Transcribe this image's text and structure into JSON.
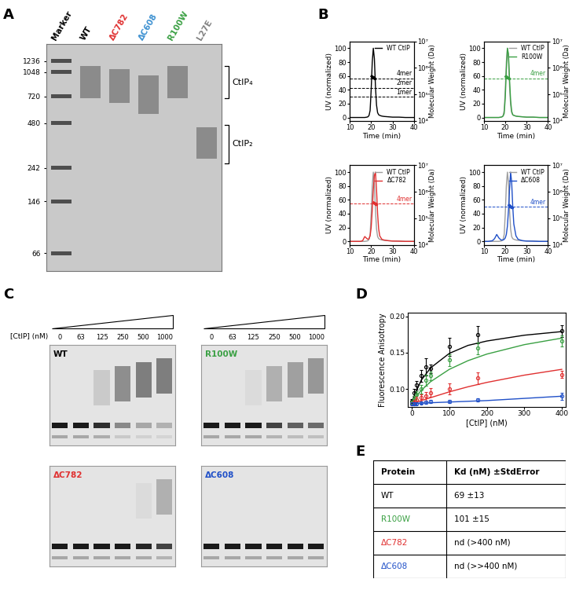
{
  "panel_labels": [
    "A",
    "B",
    "C",
    "D",
    "E"
  ],
  "native_gel": {
    "lanes": [
      {
        "label": "Marker",
        "color": "#000000"
      },
      {
        "label": "WT",
        "color": "#000000",
        "band_kda": [
          700,
          1150
        ]
      },
      {
        "label": "ΔC782",
        "color": "#e03030",
        "band_kda": [
          650,
          1100
        ]
      },
      {
        "label": "ΔC608",
        "color": "#3a8fd0",
        "band_kda": [
          550,
          1000
        ]
      },
      {
        "label": "R100W",
        "color": "#3aa043",
        "band_kda": [
          700,
          1150
        ]
      },
      {
        "label": "L27E",
        "color": "#808080",
        "band_kda": [
          280,
          450
        ]
      }
    ],
    "marker_kda": [
      1236,
      1048,
      720,
      480,
      242,
      146,
      66
    ],
    "ylim": [
      50,
      1600
    ],
    "log": "y",
    "brackets": [
      {
        "label": "CtIP₄",
        "from": 700,
        "to": 1150
      },
      {
        "label": "CtIP₂",
        "from": 260,
        "to": 470
      }
    ]
  },
  "chart_data": [
    {
      "type": "line",
      "x_label": "Time (min)",
      "y_label": "UV (normalized)",
      "y2_label": "Molecular Weight (Da)",
      "xlim": [
        10,
        40
      ],
      "xticks": [
        10,
        20,
        30,
        40
      ],
      "ylim": [
        -5,
        110
      ],
      "yticks": [
        0,
        20,
        40,
        60,
        80,
        100
      ],
      "y2lim": [
        10000,
        10000000
      ],
      "y2ticks": [
        {
          "value": 10000,
          "label": "10⁴"
        },
        {
          "value": 100000,
          "label": "10⁵"
        },
        {
          "value": 1000000,
          "label": "10⁶"
        },
        {
          "value": 10000000,
          "label": "10⁷"
        }
      ],
      "log": "y2",
      "legend": "upper right",
      "series": [
        {
          "name": "WT CtIP",
          "color": "#000000",
          "x": [
            10,
            12,
            14,
            15,
            16,
            17,
            18,
            18.5,
            19,
            19.5,
            20,
            20.5,
            21,
            21.5,
            22,
            22.5,
            23,
            23.5,
            24,
            25,
            26,
            28,
            30,
            33,
            36,
            40
          ],
          "values": [
            0,
            0,
            0,
            0,
            0,
            0,
            0.5,
            1,
            3,
            10,
            40,
            80,
            100,
            85,
            45,
            18,
            7,
            4,
            3,
            2,
            1.5,
            1,
            0.5,
            0.5,
            0,
            0
          ]
        },
        {
          "color": "#000000",
          "axis": "y2",
          "marker": "dot",
          "x": [
            20.2,
            20.5,
            20.8,
            21.1,
            21.4,
            21.7
          ],
          "values": [
            480000,
            460000,
            440000,
            425000,
            410000,
            400000
          ]
        }
      ],
      "reference_lines": [
        {
          "value": 400000,
          "label": "4mer",
          "color": "#000000"
        },
        {
          "value": 180000,
          "label": "2mer",
          "color": "#000000"
        },
        {
          "value": 80000,
          "label": "1mer",
          "color": "#000000"
        }
      ]
    },
    {
      "type": "line",
      "x_label": "Time (min)",
      "y_label": "UV (normalized)",
      "y2_label": "Molecular Weight (Da)",
      "xlim": [
        10,
        40
      ],
      "xticks": [
        10,
        20,
        30,
        40
      ],
      "ylim": [
        -5,
        110
      ],
      "yticks": [
        0,
        20,
        40,
        60,
        80,
        100
      ],
      "y2lim": [
        10000,
        10000000
      ],
      "y2ticks": [
        {
          "value": 10000,
          "label": "10⁴"
        },
        {
          "value": 100000,
          "label": "10⁵"
        },
        {
          "value": 1000000,
          "label": "10⁶"
        },
        {
          "value": 10000000,
          "label": "10⁷"
        }
      ],
      "log": "y2",
      "legend": "upper right",
      "series": [
        {
          "name": "WT CtIP",
          "color": "#9e9e9e",
          "x": [
            10,
            12,
            14,
            15,
            16,
            17,
            18,
            18.5,
            19,
            19.5,
            20,
            20.5,
            21,
            21.5,
            22,
            22.5,
            23,
            23.5,
            24,
            25,
            26,
            28,
            30,
            33,
            36,
            40
          ],
          "values": [
            0,
            0,
            0,
            0,
            0,
            0,
            0.5,
            1,
            3,
            10,
            40,
            80,
            100,
            85,
            45,
            18,
            7,
            4,
            3,
            2,
            1.5,
            1,
            0.5,
            0.5,
            0,
            0
          ]
        },
        {
          "name": "R100W",
          "color": "#3aa043",
          "x": [
            10,
            12,
            14,
            15,
            16,
            17,
            18,
            18.5,
            19,
            19.5,
            20,
            20.5,
            21,
            21.5,
            22,
            22.5,
            23,
            23.5,
            24,
            25,
            26,
            28,
            30,
            33,
            36,
            40
          ],
          "values": [
            0,
            0,
            0,
            0,
            0,
            0,
            0.5,
            1,
            2,
            6,
            28,
            68,
            100,
            92,
            55,
            25,
            9,
            4,
            3,
            2,
            1.5,
            1,
            0.5,
            0.5,
            0,
            0
          ]
        },
        {
          "color": "#3aa043",
          "axis": "y2",
          "marker": "dot",
          "x": [
            20.2,
            20.5,
            20.8,
            21.1,
            21.4,
            21.7
          ],
          "values": [
            470000,
            455000,
            440000,
            425000,
            410000,
            395000
          ]
        }
      ],
      "reference_lines": [
        {
          "value": 400000,
          "label": "4mer",
          "color": "#3aa043"
        }
      ]
    },
    {
      "type": "line",
      "x_label": "Time (min)",
      "y_label": "UV (normalized)",
      "y2_label": "Molecular Weight (Da)",
      "xlim": [
        10,
        40
      ],
      "xticks": [
        10,
        20,
        30,
        40
      ],
      "ylim": [
        -5,
        110
      ],
      "yticks": [
        0,
        20,
        40,
        60,
        80,
        100
      ],
      "y2lim": [
        10000,
        10000000
      ],
      "y2ticks": [
        {
          "value": 10000,
          "label": "10⁴"
        },
        {
          "value": 100000,
          "label": "10⁵"
        },
        {
          "value": 1000000,
          "label": "10⁶"
        },
        {
          "value": 10000000,
          "label": "10⁷"
        }
      ],
      "log": "y2",
      "legend": "upper right",
      "series": [
        {
          "name": "WT CtIP",
          "color": "#9e9e9e",
          "x": [
            10,
            12,
            14,
            15,
            16,
            17,
            18,
            18.5,
            19,
            19.5,
            20,
            20.5,
            21,
            21.5,
            22,
            22.5,
            23,
            23.5,
            24,
            25,
            26,
            28,
            30,
            33,
            36,
            40
          ],
          "values": [
            0,
            0,
            0,
            0,
            0,
            0,
            0.5,
            1,
            3,
            10,
            40,
            80,
            100,
            85,
            45,
            18,
            7,
            4,
            3,
            2,
            1.5,
            1,
            0.5,
            0.5,
            0,
            0
          ]
        },
        {
          "name": "ΔC782",
          "color": "#e03030",
          "x": [
            10,
            12,
            14,
            15,
            16,
            17,
            18,
            18.5,
            19,
            19.5,
            20,
            20.5,
            21,
            21.5,
            22,
            22.5,
            23,
            23.5,
            24,
            25,
            26,
            28,
            30,
            33,
            36,
            40
          ],
          "values": [
            0,
            0,
            0,
            0,
            1,
            7,
            4,
            3,
            4,
            8,
            20,
            45,
            75,
            95,
            100,
            75,
            40,
            18,
            8,
            3,
            2,
            1,
            0.5,
            0.3,
            0,
            0
          ]
        },
        {
          "color": "#e03030",
          "axis": "y2",
          "marker": "dot",
          "x": [
            21.0,
            21.3,
            21.6,
            21.9,
            22.2,
            22.5
          ],
          "values": [
            400000,
            385000,
            370000,
            355000,
            345000,
            335000
          ]
        }
      ],
      "reference_lines": [
        {
          "value": 350000,
          "label": "4mer",
          "color": "#e03030"
        }
      ]
    },
    {
      "type": "line",
      "x_label": "Time (min)",
      "y_label": "UV (normalized)",
      "y2_label": "Molecular Weight (Da)",
      "xlim": [
        10,
        40
      ],
      "xticks": [
        10,
        20,
        30,
        40
      ],
      "ylim": [
        -5,
        110
      ],
      "yticks": [
        0,
        20,
        40,
        60,
        80,
        100
      ],
      "y2lim": [
        10000,
        10000000
      ],
      "y2ticks": [
        {
          "value": 10000,
          "label": "10⁴"
        },
        {
          "value": 100000,
          "label": "10⁵"
        },
        {
          "value": 1000000,
          "label": "10⁶"
        },
        {
          "value": 10000000,
          "label": "10⁷"
        }
      ],
      "log": "y2",
      "legend": "upper right",
      "series": [
        {
          "name": "WT CtIP",
          "color": "#9e9e9e",
          "x": [
            10,
            12,
            14,
            15,
            16,
            17,
            18,
            18.5,
            19,
            19.5,
            20,
            20.5,
            21,
            21.5,
            22,
            22.5,
            23,
            23.5,
            24,
            25,
            26,
            28,
            30,
            33,
            36,
            40
          ],
          "values": [
            0,
            0,
            0,
            0,
            0,
            0,
            0.5,
            1,
            3,
            10,
            40,
            80,
            100,
            85,
            45,
            18,
            7,
            4,
            3,
            2,
            1.5,
            1,
            0.5,
            0.5,
            0,
            0
          ]
        },
        {
          "name": "ΔC608",
          "color": "#2050c8",
          "x": [
            10,
            12,
            14,
            15,
            16,
            17,
            18,
            18.5,
            19,
            19.5,
            20,
            20.5,
            21,
            21.5,
            22,
            22.5,
            23,
            23.5,
            24,
            25,
            26,
            28,
            30,
            33,
            36,
            40
          ],
          "values": [
            0,
            0,
            1,
            4,
            10,
            5,
            2,
            2,
            2,
            3,
            5,
            10,
            22,
            45,
            75,
            100,
            85,
            50,
            25,
            8,
            3,
            1,
            0.5,
            0.3,
            0,
            0
          ]
        },
        {
          "color": "#2050c8",
          "axis": "y2",
          "marker": "dot",
          "x": [
            21.7,
            22.0,
            22.3,
            22.6,
            22.9,
            23.2
          ],
          "values": [
            310000,
            295000,
            280000,
            270000,
            262000,
            255000
          ]
        }
      ],
      "reference_lines": [
        {
          "value": 270000,
          "label": "4mer",
          "color": "#2050c8"
        }
      ]
    },
    {
      "type": "scatter",
      "x_label": "[CtIP] (nM)",
      "y_label": "Fluorescence Anisotropy",
      "xlim": [
        -10,
        410
      ],
      "xticks": [
        0,
        100,
        200,
        300,
        400
      ],
      "ylim": [
        0.075,
        0.205
      ],
      "yticks": [
        {
          "value": 0.1,
          "label": "0.10"
        },
        {
          "value": 0.15,
          "label": "0.15"
        },
        {
          "value": 0.2,
          "label": "0.20"
        }
      ],
      "marker": "open circle",
      "series": [
        {
          "color": "#000000",
          "x": [
            0,
            6.25,
            12.5,
            25,
            37.5,
            50,
            100,
            175,
            400
          ],
          "values": [
            0.083,
            0.095,
            0.105,
            0.118,
            0.13,
            0.128,
            0.158,
            0.175,
            0.18
          ],
          "errors": [
            0.003,
            0.005,
            0.006,
            0.008,
            0.012,
            0.006,
            0.012,
            0.012,
            0.008
          ],
          "fit_x": [
            0,
            25,
            50,
            100,
            150,
            200,
            300,
            400
          ],
          "fit_values": [
            0.083,
            0.112,
            0.129,
            0.149,
            0.16,
            0.166,
            0.174,
            0.179
          ]
        },
        {
          "color": "#3aa043",
          "x": [
            0,
            6.25,
            12.5,
            25,
            37.5,
            50,
            100,
            175,
            400
          ],
          "values": [
            0.082,
            0.086,
            0.092,
            0.1,
            0.112,
            0.118,
            0.14,
            0.156,
            0.166
          ],
          "errors": [
            0.002,
            0.004,
            0.005,
            0.006,
            0.008,
            0.006,
            0.008,
            0.008,
            0.008
          ],
          "fit_x": [
            0,
            25,
            50,
            100,
            150,
            200,
            300,
            400
          ],
          "fit_values": [
            0.082,
            0.098,
            0.11,
            0.127,
            0.139,
            0.148,
            0.161,
            0.17
          ]
        },
        {
          "color": "#e03030",
          "x": [
            0,
            6.25,
            12.5,
            25,
            37.5,
            50,
            100,
            175,
            400
          ],
          "values": [
            0.08,
            0.082,
            0.085,
            0.088,
            0.09,
            0.095,
            0.1,
            0.115,
            0.12
          ],
          "errors": [
            0.002,
            0.003,
            0.004,
            0.005,
            0.006,
            0.006,
            0.008,
            0.008,
            0.005
          ],
          "fit_x": [
            0,
            25,
            50,
            100,
            150,
            200,
            300,
            400
          ],
          "fit_values": [
            0.08,
            0.084,
            0.088,
            0.096,
            0.103,
            0.109,
            0.119,
            0.127
          ]
        },
        {
          "color": "#2050c8",
          "x": [
            0,
            6.25,
            12.5,
            25,
            37.5,
            50,
            100,
            175,
            400
          ],
          "values": [
            0.08,
            0.079,
            0.08,
            0.081,
            0.082,
            0.083,
            0.083,
            0.085,
            0.09
          ],
          "errors": [
            0.002,
            0.002,
            0.002,
            0.002,
            0.002,
            0.002,
            0.002,
            0.002,
            0.005
          ],
          "fit_x": [
            0,
            25,
            50,
            100,
            150,
            200,
            300,
            400
          ],
          "fit_values": [
            0.08,
            0.0805,
            0.081,
            0.082,
            0.083,
            0.084,
            0.087,
            0.09
          ]
        }
      ]
    }
  ],
  "emsa": {
    "axis_label": "[CtIP] (nM)",
    "concentrations": [
      0,
      63,
      125,
      250,
      500,
      1000
    ],
    "gels": [
      {
        "name": "WT",
        "color": "#000000"
      },
      {
        "name": "R100W",
        "color": "#3aa043"
      },
      {
        "name": "ΔC782",
        "color": "#e03030"
      },
      {
        "name": "ΔC608",
        "color": "#2050c8"
      }
    ]
  },
  "table": {
    "header": [
      "Protein",
      "Kd (nM) ±StdError"
    ],
    "rows": [
      {
        "protein": "WT",
        "color": "#000000",
        "kd": "69 ±13"
      },
      {
        "protein": "R100W",
        "color": "#3aa043",
        "kd": "101 ±15"
      },
      {
        "protein": "ΔC782",
        "color": "#e03030",
        "kd": "nd (>400 nM)"
      },
      {
        "protein": "ΔC608",
        "color": "#2050c8",
        "kd": "nd (>>400 nM)"
      }
    ]
  }
}
